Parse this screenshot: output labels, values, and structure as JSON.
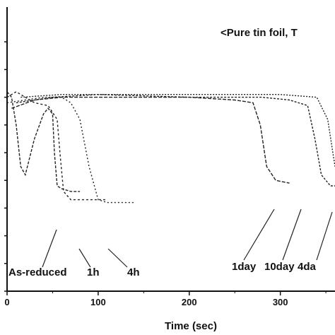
{
  "chart_data": {
    "type": "line",
    "title": "<Pure tin foil, T",
    "xlabel": "Time (sec)",
    "ylabel": "",
    "xlim": [
      0,
      360
    ],
    "ylim": [
      0,
      1
    ],
    "x_ticks": [
      0,
      100,
      200,
      300
    ],
    "x_tick_labels": [
      "0",
      "100",
      "200",
      "300"
    ],
    "grid": false,
    "series": [
      {
        "name": "As-reduced",
        "x": [
          0,
          5,
          10,
          15,
          20,
          30,
          40,
          45,
          50,
          52,
          55,
          60,
          70,
          80
        ],
        "y": [
          0.72,
          0.7,
          0.6,
          0.45,
          0.42,
          0.55,
          0.64,
          0.66,
          0.64,
          0.5,
          0.38,
          0.37,
          0.36,
          0.36
        ]
      },
      {
        "name": "1h",
        "x": [
          0,
          10,
          20,
          30,
          45,
          55,
          58,
          62,
          70,
          90,
          110
        ],
        "y": [
          0.7,
          0.72,
          0.7,
          0.68,
          0.67,
          0.62,
          0.5,
          0.36,
          0.33,
          0.33,
          0.33
        ]
      },
      {
        "name": "4h",
        "x": [
          0,
          20,
          40,
          60,
          70,
          80,
          90,
          100,
          110,
          140
        ],
        "y": [
          0.68,
          0.69,
          0.7,
          0.7,
          0.68,
          0.62,
          0.45,
          0.33,
          0.32,
          0.32
        ]
      },
      {
        "name": "1day",
        "x": [
          5,
          30,
          60,
          100,
          150,
          200,
          250,
          270,
          278,
          285,
          295,
          310
        ],
        "y": [
          0.66,
          0.69,
          0.7,
          0.7,
          0.7,
          0.7,
          0.69,
          0.68,
          0.6,
          0.45,
          0.4,
          0.39
        ]
      },
      {
        "name": "10day",
        "x": [
          10,
          50,
          100,
          200,
          280,
          310,
          330,
          338,
          345,
          355,
          370
        ],
        "y": [
          0.68,
          0.7,
          0.71,
          0.7,
          0.7,
          0.69,
          0.67,
          0.55,
          0.42,
          0.38,
          0.38
        ]
      },
      {
        "name": "4da",
        "x": [
          15,
          60,
          120,
          200,
          300,
          340,
          352,
          360
        ],
        "y": [
          0.7,
          0.71,
          0.71,
          0.71,
          0.71,
          0.7,
          0.62,
          0.45
        ]
      }
    ],
    "series_labels": [
      "As-reduced",
      "1h",
      "4h",
      "1day",
      "10day",
      "4da"
    ]
  }
}
